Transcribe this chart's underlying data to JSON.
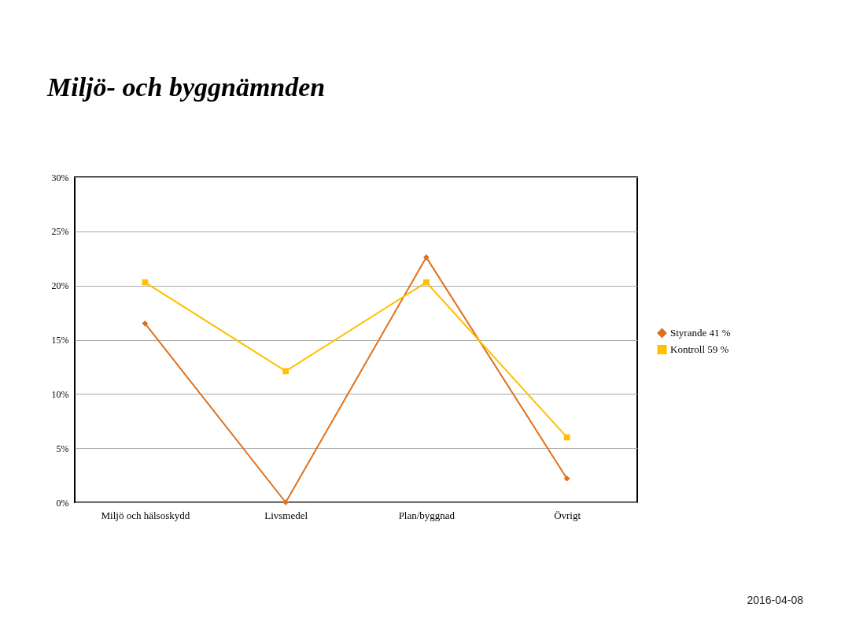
{
  "chart_data": {
    "type": "line",
    "title": "Miljö- och byggnämnden",
    "annotations": [
      "2016-04-08"
    ],
    "categories": [
      "Miljö och hälsoskydd",
      "Livsmedel",
      "Plan/byggnad",
      "Övrigt"
    ],
    "series": [
      {
        "name": "Styrande 41 %",
        "color": "#e0711c",
        "marker": "diamond",
        "values": [
          16.5,
          0,
          22.6,
          2.2
        ]
      },
      {
        "name": "Kontroll 59 %",
        "color": "#ffc000",
        "marker": "square",
        "values": [
          20.3,
          12.1,
          20.3,
          6.0
        ]
      }
    ],
    "ylim": [
      0,
      30
    ],
    "yticks": [
      {
        "value": 0,
        "label": "0%"
      },
      {
        "value": 5,
        "label": "5%"
      },
      {
        "value": 10,
        "label": "10%"
      },
      {
        "value": 15,
        "label": "15%"
      },
      {
        "value": 20,
        "label": "20%"
      },
      {
        "value": 25,
        "label": "25%"
      },
      {
        "value": 30,
        "label": "30%"
      }
    ],
    "grid": "y",
    "legend": "right",
    "line_style": "solid"
  }
}
